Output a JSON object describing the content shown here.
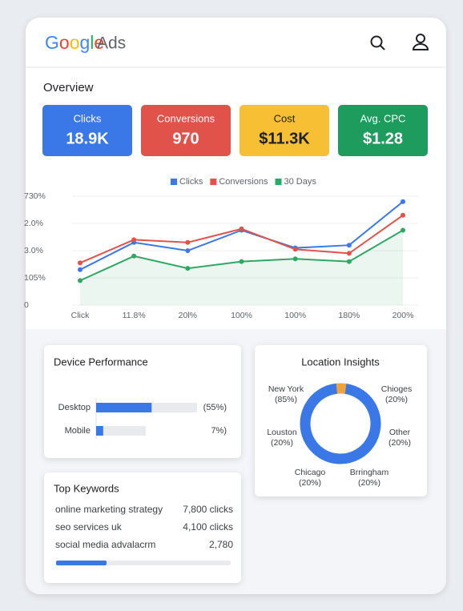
{
  "header": {
    "brand": "Google",
    "product": "Ads"
  },
  "overview": {
    "title": "Overview",
    "cards": [
      {
        "label": "Clicks",
        "value": "18.9K",
        "color": "#3b78e7"
      },
      {
        "label": "Conversions",
        "value": "970",
        "color": "#e0524a"
      },
      {
        "label": "Cost",
        "value": "$11.3K",
        "color": "#f7c034"
      },
      {
        "label": "Avg. CPC",
        "value": "$1.28",
        "color": "#1e9c5d"
      }
    ]
  },
  "chart_data": [
    {
      "type": "line",
      "categories": [
        "Click",
        "11.8%",
        "20l%",
        "100%",
        "100%",
        "180%",
        "200%"
      ],
      "series": [
        {
          "name": "Clicks",
          "color": "#3b78e7",
          "values": [
            1.3,
            2.3,
            2.0,
            2.75,
            2.1,
            2.2,
            3.8
          ]
        },
        {
          "name": "Conversions",
          "color": "#e0524a",
          "values": [
            1.55,
            2.4,
            2.3,
            2.8,
            2.05,
            1.9,
            3.3
          ]
        },
        {
          "name": "30 Days",
          "color": "#2fa765",
          "values": [
            0.9,
            1.8,
            1.35,
            1.6,
            1.7,
            1.6,
            2.75
          ],
          "area": true
        }
      ],
      "ylim": [
        0,
        4
      ],
      "yticks": [
        0,
        {
          "value": 1,
          "label": "105%"
        },
        {
          "value": 2,
          "label": "3.0%"
        },
        {
          "value": 3,
          "label": "2.0%"
        },
        {
          "value": 4,
          "label": "730%"
        }
      ],
      "grid": true,
      "legend": "top"
    },
    {
      "type": "bar",
      "orientation": "horizontal",
      "title": "Device Performance",
      "categories": [
        "Desktop",
        "Mobile"
      ],
      "values": [
        55,
        7
      ],
      "value_labels": [
        "(55%)",
        "7%)"
      ],
      "xlim": [
        0,
        100
      ],
      "color": "#3b78e7"
    },
    {
      "type": "pie",
      "title": "Location Insights",
      "donut": true,
      "values": [
        4,
        96
      ],
      "colors": [
        "#f0a23b",
        "#3b78e7"
      ],
      "annotations": [
        {
          "name": "New York",
          "note": "(85%)"
        },
        {
          "name": "Chioges",
          "note": "(20%)"
        },
        {
          "name": "Louston",
          "note": "(20%)"
        },
        {
          "name": "Other",
          "note": "(20%)"
        },
        {
          "name": "Chicago",
          "note": "(20%)"
        },
        {
          "name": "Brringham",
          "note": "(20%)"
        }
      ]
    }
  ],
  "keywords": {
    "title": "Top Keywords",
    "rows": [
      [
        "online marketing strategy",
        "7,800 clicks"
      ],
      [
        "seo services uk",
        "4,100 clicks"
      ],
      [
        "social media advalacrm",
        "2,780"
      ]
    ]
  }
}
